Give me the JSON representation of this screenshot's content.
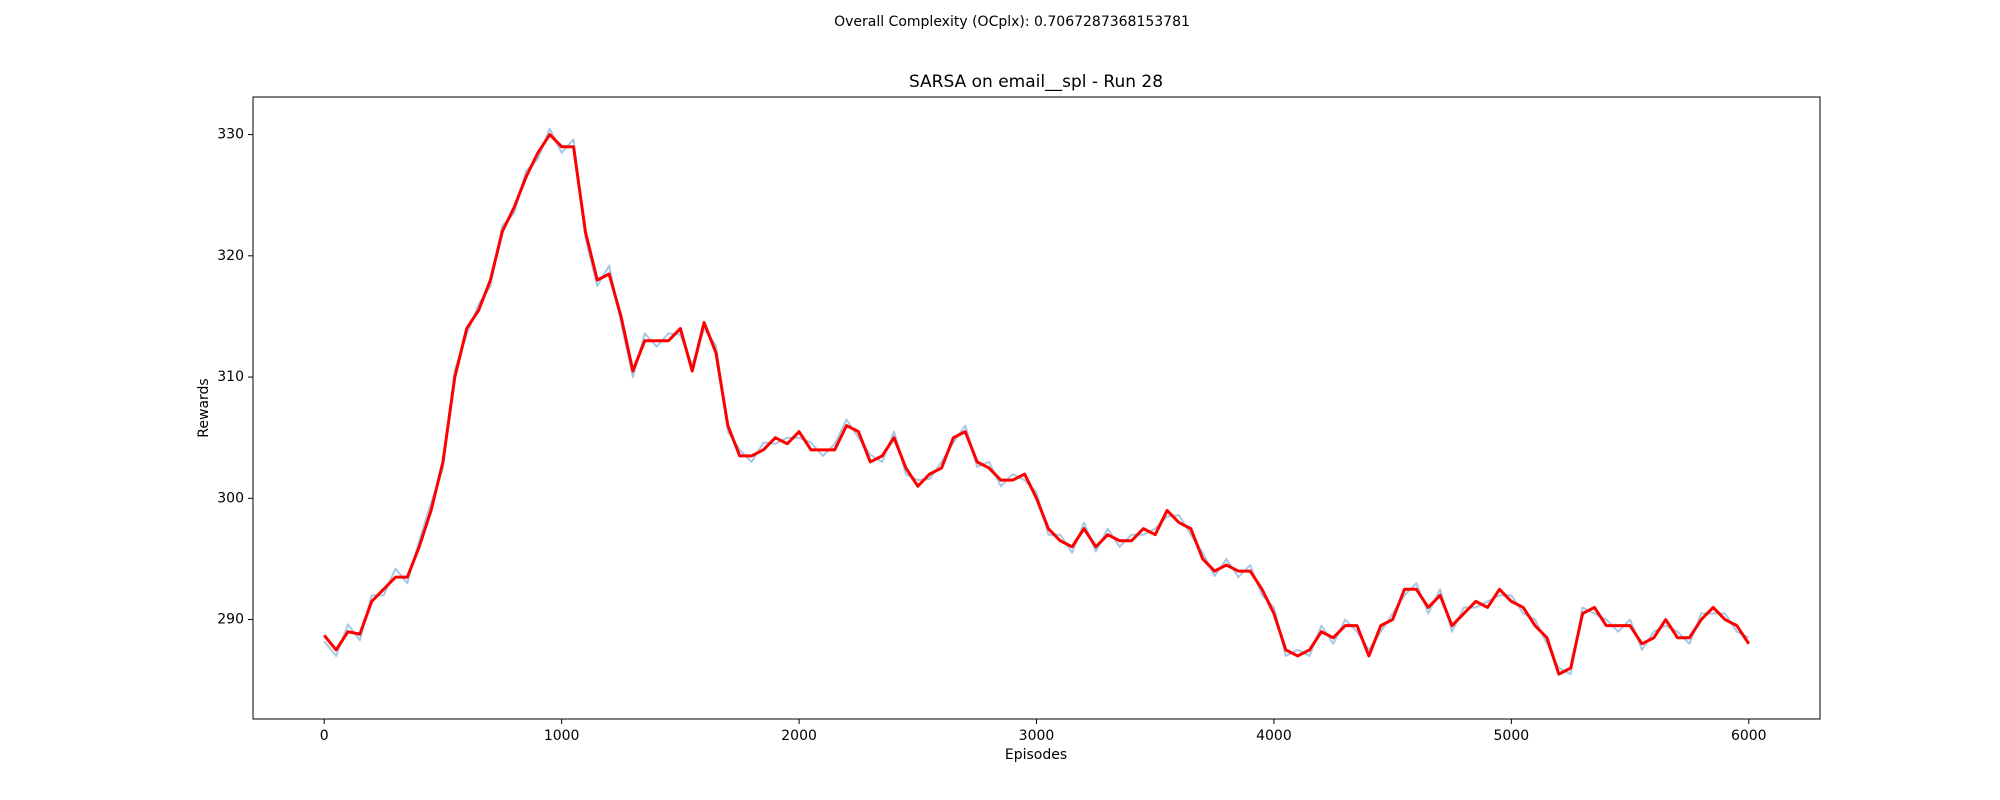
{
  "chart_data": {
    "type": "line",
    "suptitle": "Overall Complexity (OCplx): 0.7067287368153781",
    "suptitle_color": "#ff0000",
    "title": "SARSA on email__spl - Run 28",
    "x_label": "Episodes",
    "y_label": "Rewards",
    "x": [
      0,
      50,
      100,
      150,
      200,
      250,
      300,
      350,
      400,
      450,
      500,
      550,
      600,
      650,
      700,
      750,
      800,
      850,
      900,
      950,
      1000,
      1050,
      1100,
      1150,
      1200,
      1250,
      1300,
      1350,
      1400,
      1450,
      1500,
      1550,
      1600,
      1650,
      1700,
      1750,
      1800,
      1850,
      1900,
      1950,
      2000,
      2050,
      2100,
      2150,
      2200,
      2250,
      2300,
      2350,
      2400,
      2450,
      2500,
      2550,
      2600,
      2650,
      2700,
      2750,
      2800,
      2850,
      2900,
      2950,
      3000,
      3050,
      3100,
      3150,
      3200,
      3250,
      3300,
      3350,
      3400,
      3450,
      3500,
      3550,
      3600,
      3650,
      3700,
      3750,
      3800,
      3850,
      3900,
      3950,
      4000,
      4050,
      4100,
      4150,
      4200,
      4250,
      4300,
      4350,
      4400,
      4450,
      4500,
      4550,
      4600,
      4650,
      4700,
      4750,
      4800,
      4850,
      4900,
      4950,
      5000,
      5050,
      5100,
      5150,
      5200,
      5250,
      5300,
      5350,
      5400,
      5450,
      5500,
      5550,
      5600,
      5650,
      5700,
      5750,
      5800,
      5850,
      5900,
      5950,
      6000
    ],
    "series": [
      {
        "color": "#a6c8e6",
        "values": [
          288.2,
          287.0,
          289.6,
          288.3,
          292.0,
          292.0,
          294.2,
          293.0,
          296.5,
          299.6,
          302.5,
          310.6,
          313.5,
          316.0,
          317.5,
          322.5,
          323.5,
          327.0,
          328.0,
          330.5,
          328.5,
          329.6,
          321.5,
          317.5,
          319.2,
          314.5,
          310.0,
          313.6,
          312.5,
          313.6,
          313.5,
          311.0,
          314.0,
          312.6,
          305.5,
          304.0,
          303.0,
          304.6,
          304.5,
          305.0,
          305.0,
          304.6,
          303.5,
          304.5,
          306.5,
          305.0,
          303.6,
          303.0,
          305.5,
          302.0,
          301.5,
          301.6,
          303.0,
          304.6,
          306.0,
          302.6,
          303.0,
          301.0,
          302.0,
          301.5,
          300.5,
          297.0,
          297.0,
          295.5,
          298.0,
          295.6,
          297.5,
          296.0,
          297.0,
          297.0,
          297.5,
          298.5,
          298.6,
          297.0,
          295.5,
          293.6,
          295.0,
          293.5,
          294.5,
          292.0,
          291.0,
          287.0,
          287.5,
          287.0,
          289.5,
          288.0,
          290.0,
          289.0,
          287.5,
          289.0,
          290.5,
          292.0,
          293.0,
          290.5,
          292.5,
          289.0,
          291.0,
          291.0,
          291.5,
          292.0,
          292.0,
          290.5,
          290.0,
          288.0,
          286.0,
          285.5,
          291.0,
          290.5,
          290.0,
          289.0,
          290.0,
          287.5,
          289.0,
          289.5,
          289.0,
          288.0,
          290.5,
          290.5,
          290.5,
          289.0,
          288.5
        ]
      },
      {
        "color": "#ff0000",
        "values": [
          288.7,
          287.5,
          289.0,
          288.8,
          291.5,
          292.5,
          293.5,
          293.5,
          296.0,
          299.0,
          303.0,
          310.0,
          314.0,
          315.5,
          318.0,
          322.0,
          324.0,
          326.5,
          328.5,
          330.0,
          329.0,
          329.0,
          322.0,
          318.0,
          318.5,
          315.0,
          310.5,
          313.0,
          313.0,
          313.0,
          314.0,
          310.5,
          314.5,
          312.0,
          306.0,
          303.5,
          303.5,
          304.0,
          305.0,
          304.5,
          305.5,
          304.0,
          304.0,
          304.0,
          306.0,
          305.5,
          303.0,
          303.5,
          305.0,
          302.5,
          301.0,
          302.0,
          302.5,
          305.0,
          305.5,
          303.0,
          302.5,
          301.5,
          301.5,
          302.0,
          300.0,
          297.5,
          296.5,
          296.0,
          297.5,
          296.0,
          297.0,
          296.5,
          296.5,
          297.5,
          297.0,
          299.0,
          298.0,
          297.5,
          295.0,
          294.0,
          294.5,
          294.0,
          294.0,
          292.5,
          290.5,
          287.5,
          287.0,
          287.5,
          289.0,
          288.5,
          289.5,
          289.5,
          287.0,
          289.5,
          290.0,
          292.5,
          292.5,
          291.0,
          292.0,
          289.5,
          290.5,
          291.5,
          291.0,
          292.5,
          291.5,
          291.0,
          289.5,
          288.5,
          285.5,
          286.0,
          290.5,
          291.0,
          289.5,
          289.5,
          289.5,
          288.0,
          288.5,
          290.0,
          288.5,
          288.5,
          290.0,
          291.0,
          290.0,
          289.5,
          288.0
        ]
      }
    ],
    "xlim": [
      -300,
      6300
    ],
    "ylim": [
      281.8,
      333.1
    ],
    "xticks": [
      0,
      1000,
      2000,
      3000,
      4000,
      5000,
      6000
    ],
    "yticks": [
      290,
      300,
      310,
      320,
      330
    ]
  }
}
